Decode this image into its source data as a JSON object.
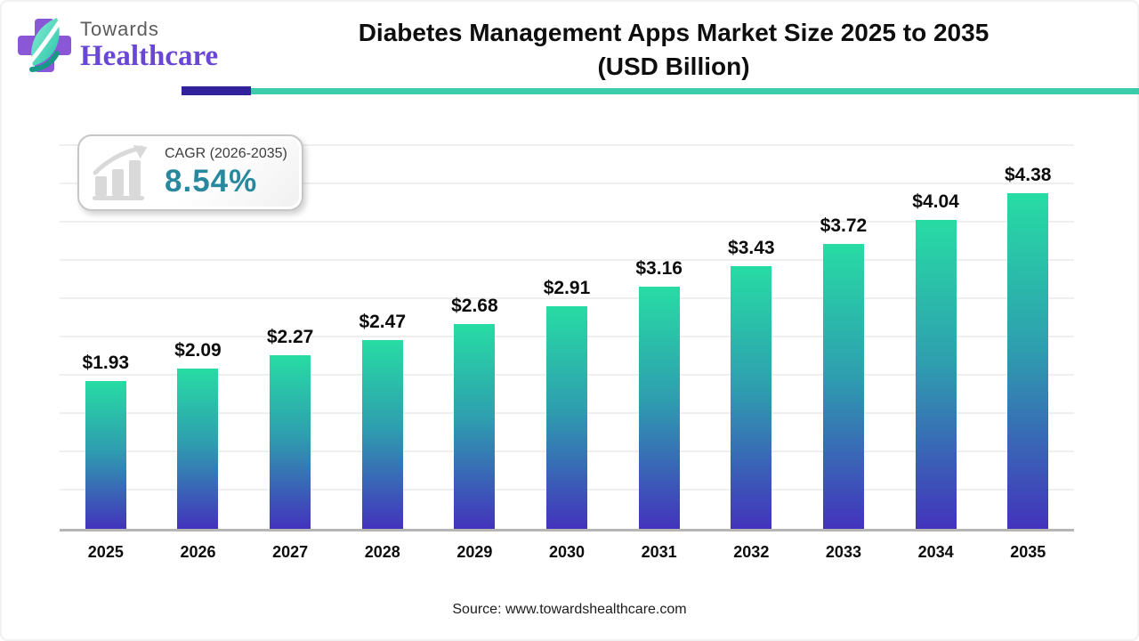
{
  "header": {
    "logo": {
      "top": "Towards",
      "bottom": "Healthcare"
    },
    "title_line1": "Diabetes Management Apps Market Size 2025 to 2035",
    "title_line2": "(USD Billion)"
  },
  "cagr_badge": {
    "label": "CAGR (2026-2035)",
    "value": "8.54%",
    "value_color": "#28899e",
    "icon": "growth-chart-icon"
  },
  "chart_data": {
    "type": "bar",
    "title": "Diabetes Management Apps Market Size 2025 to 2035 (USD Billion)",
    "categories": [
      "2025",
      "2026",
      "2027",
      "2028",
      "2029",
      "2030",
      "2031",
      "2032",
      "2033",
      "2034",
      "2035"
    ],
    "values": [
      1.93,
      2.09,
      2.27,
      2.47,
      2.68,
      2.91,
      3.16,
      3.43,
      3.72,
      4.04,
      4.38
    ],
    "value_labels": [
      "$1.93",
      "$2.09",
      "$2.27",
      "$2.47",
      "$2.68",
      "$2.91",
      "$3.16",
      "$3.43",
      "$3.72",
      "$4.04",
      "$4.38"
    ],
    "xlabel": "",
    "ylabel": "",
    "ylim": [
      0,
      5
    ],
    "gridline_step": 0.5,
    "grid": "horizontal",
    "legend": "none",
    "bar_gradient_top": "#27dca4",
    "bar_gradient_bottom": "#4333bc"
  },
  "colors": {
    "separator_purple": "#31219b",
    "separator_teal": "#3bcdab",
    "logo_purple": "#6a46d5",
    "axis_line": "#b5b5b5",
    "gridline": "#efefef"
  },
  "footer": {
    "source": "Source: www.towardshealthcare.com"
  }
}
